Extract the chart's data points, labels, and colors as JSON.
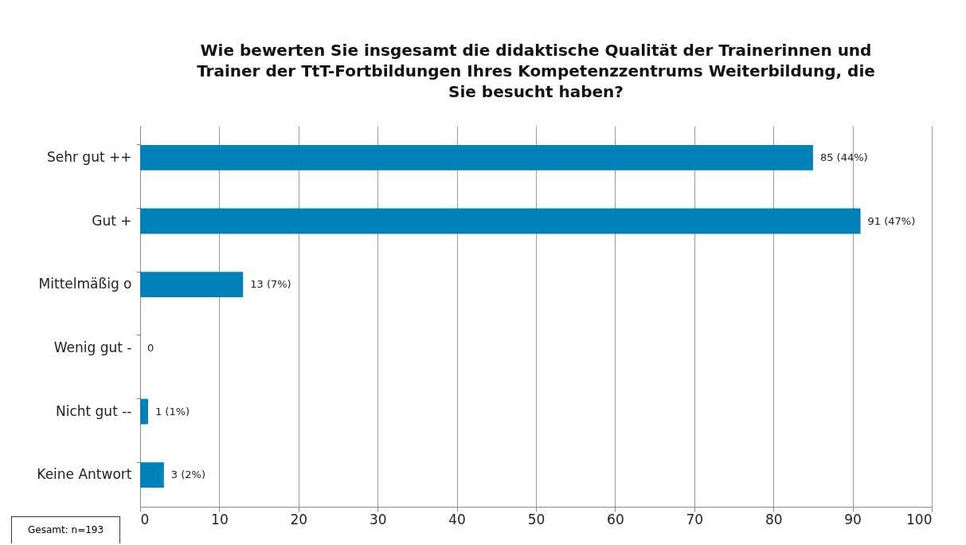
{
  "chart_data": {
    "type": "bar",
    "orientation": "horizontal",
    "title": "Wie bewerten Sie insgesamt die didaktische Qualität der Trainerinnen und\nTrainer der TtT-Fortbildungen Ihres Kompetenzzentrums Weiterbildung, die\nSie besucht haben?",
    "categories": [
      "Sehr gut ++",
      "Gut +",
      "Mittelmäßig o",
      "Wenig gut -",
      "Nicht gut --",
      "Keine Antwort"
    ],
    "values": [
      85,
      91,
      13,
      0,
      1,
      3
    ],
    "value_labels": [
      "85 (44%)",
      "91 (47%)",
      "13 (7%)",
      "0",
      "1 (1%)",
      "3 (2%)"
    ],
    "color": "#0082b9",
    "xlim": [
      0,
      100
    ],
    "xticks": [
      0,
      10,
      20,
      30,
      40,
      50,
      60,
      70,
      80,
      90,
      100
    ],
    "grid": "x",
    "annotations": [
      "Gesamt: n=193"
    ]
  }
}
